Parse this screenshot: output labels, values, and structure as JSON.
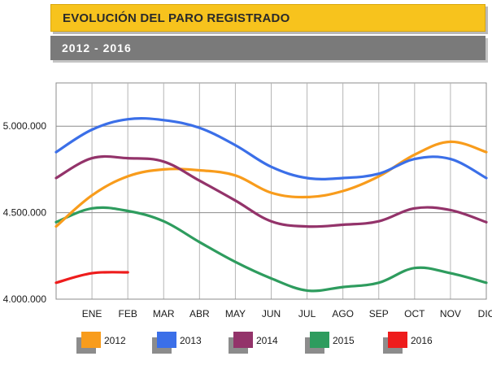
{
  "header": {
    "title": "EVOLUCIÓN DEL PARO REGISTRADO",
    "subtitle": "2012 - 2016"
  },
  "chart_data": {
    "type": "line",
    "categories": [
      "",
      "ENE",
      "FEB",
      "MAR",
      "ABR",
      "MAY",
      "JUN",
      "JUL",
      "AGO",
      "SEP",
      "OCT",
      "NOV",
      "DIC"
    ],
    "y_ticks": [
      {
        "value": 4000000,
        "label": "4.000.000"
      },
      {
        "value": 4500000,
        "label": "4.500.000"
      },
      {
        "value": 5000000,
        "label": "5.000.000"
      }
    ],
    "ylim": [
      4000000,
      5250000
    ],
    "grid": true,
    "legend_position": "bottom",
    "series": [
      {
        "name": "2012",
        "color": "#f89c1c",
        "values": [
          4420000,
          4600000,
          4710000,
          4750000,
          4745000,
          4715000,
          4615000,
          4590000,
          4625000,
          4710000,
          4835000,
          4910000,
          4850000
        ]
      },
      {
        "name": "2013",
        "color": "#3b6fe8",
        "values": [
          4850000,
          4980000,
          5040000,
          5035000,
          4990000,
          4890000,
          4765000,
          4700000,
          4700000,
          4725000,
          4810000,
          4810000,
          4700000
        ]
      },
      {
        "name": "2014",
        "color": "#93336a",
        "values": [
          4700000,
          4815000,
          4815000,
          4795000,
          4685000,
          4570000,
          4450000,
          4420000,
          4430000,
          4450000,
          4525000,
          4515000,
          4445000
        ]
      },
      {
        "name": "2015",
        "color": "#2e9c5e",
        "values": [
          4445000,
          4525000,
          4510000,
          4450000,
          4330000,
          4215000,
          4120000,
          4050000,
          4070000,
          4095000,
          4180000,
          4150000,
          4095000
        ]
      },
      {
        "name": "2016",
        "color": "#ee1c1c",
        "values": [
          4095000,
          4150000,
          4155000,
          null,
          null,
          null,
          null,
          null,
          null,
          null,
          null,
          null,
          null
        ]
      }
    ]
  }
}
